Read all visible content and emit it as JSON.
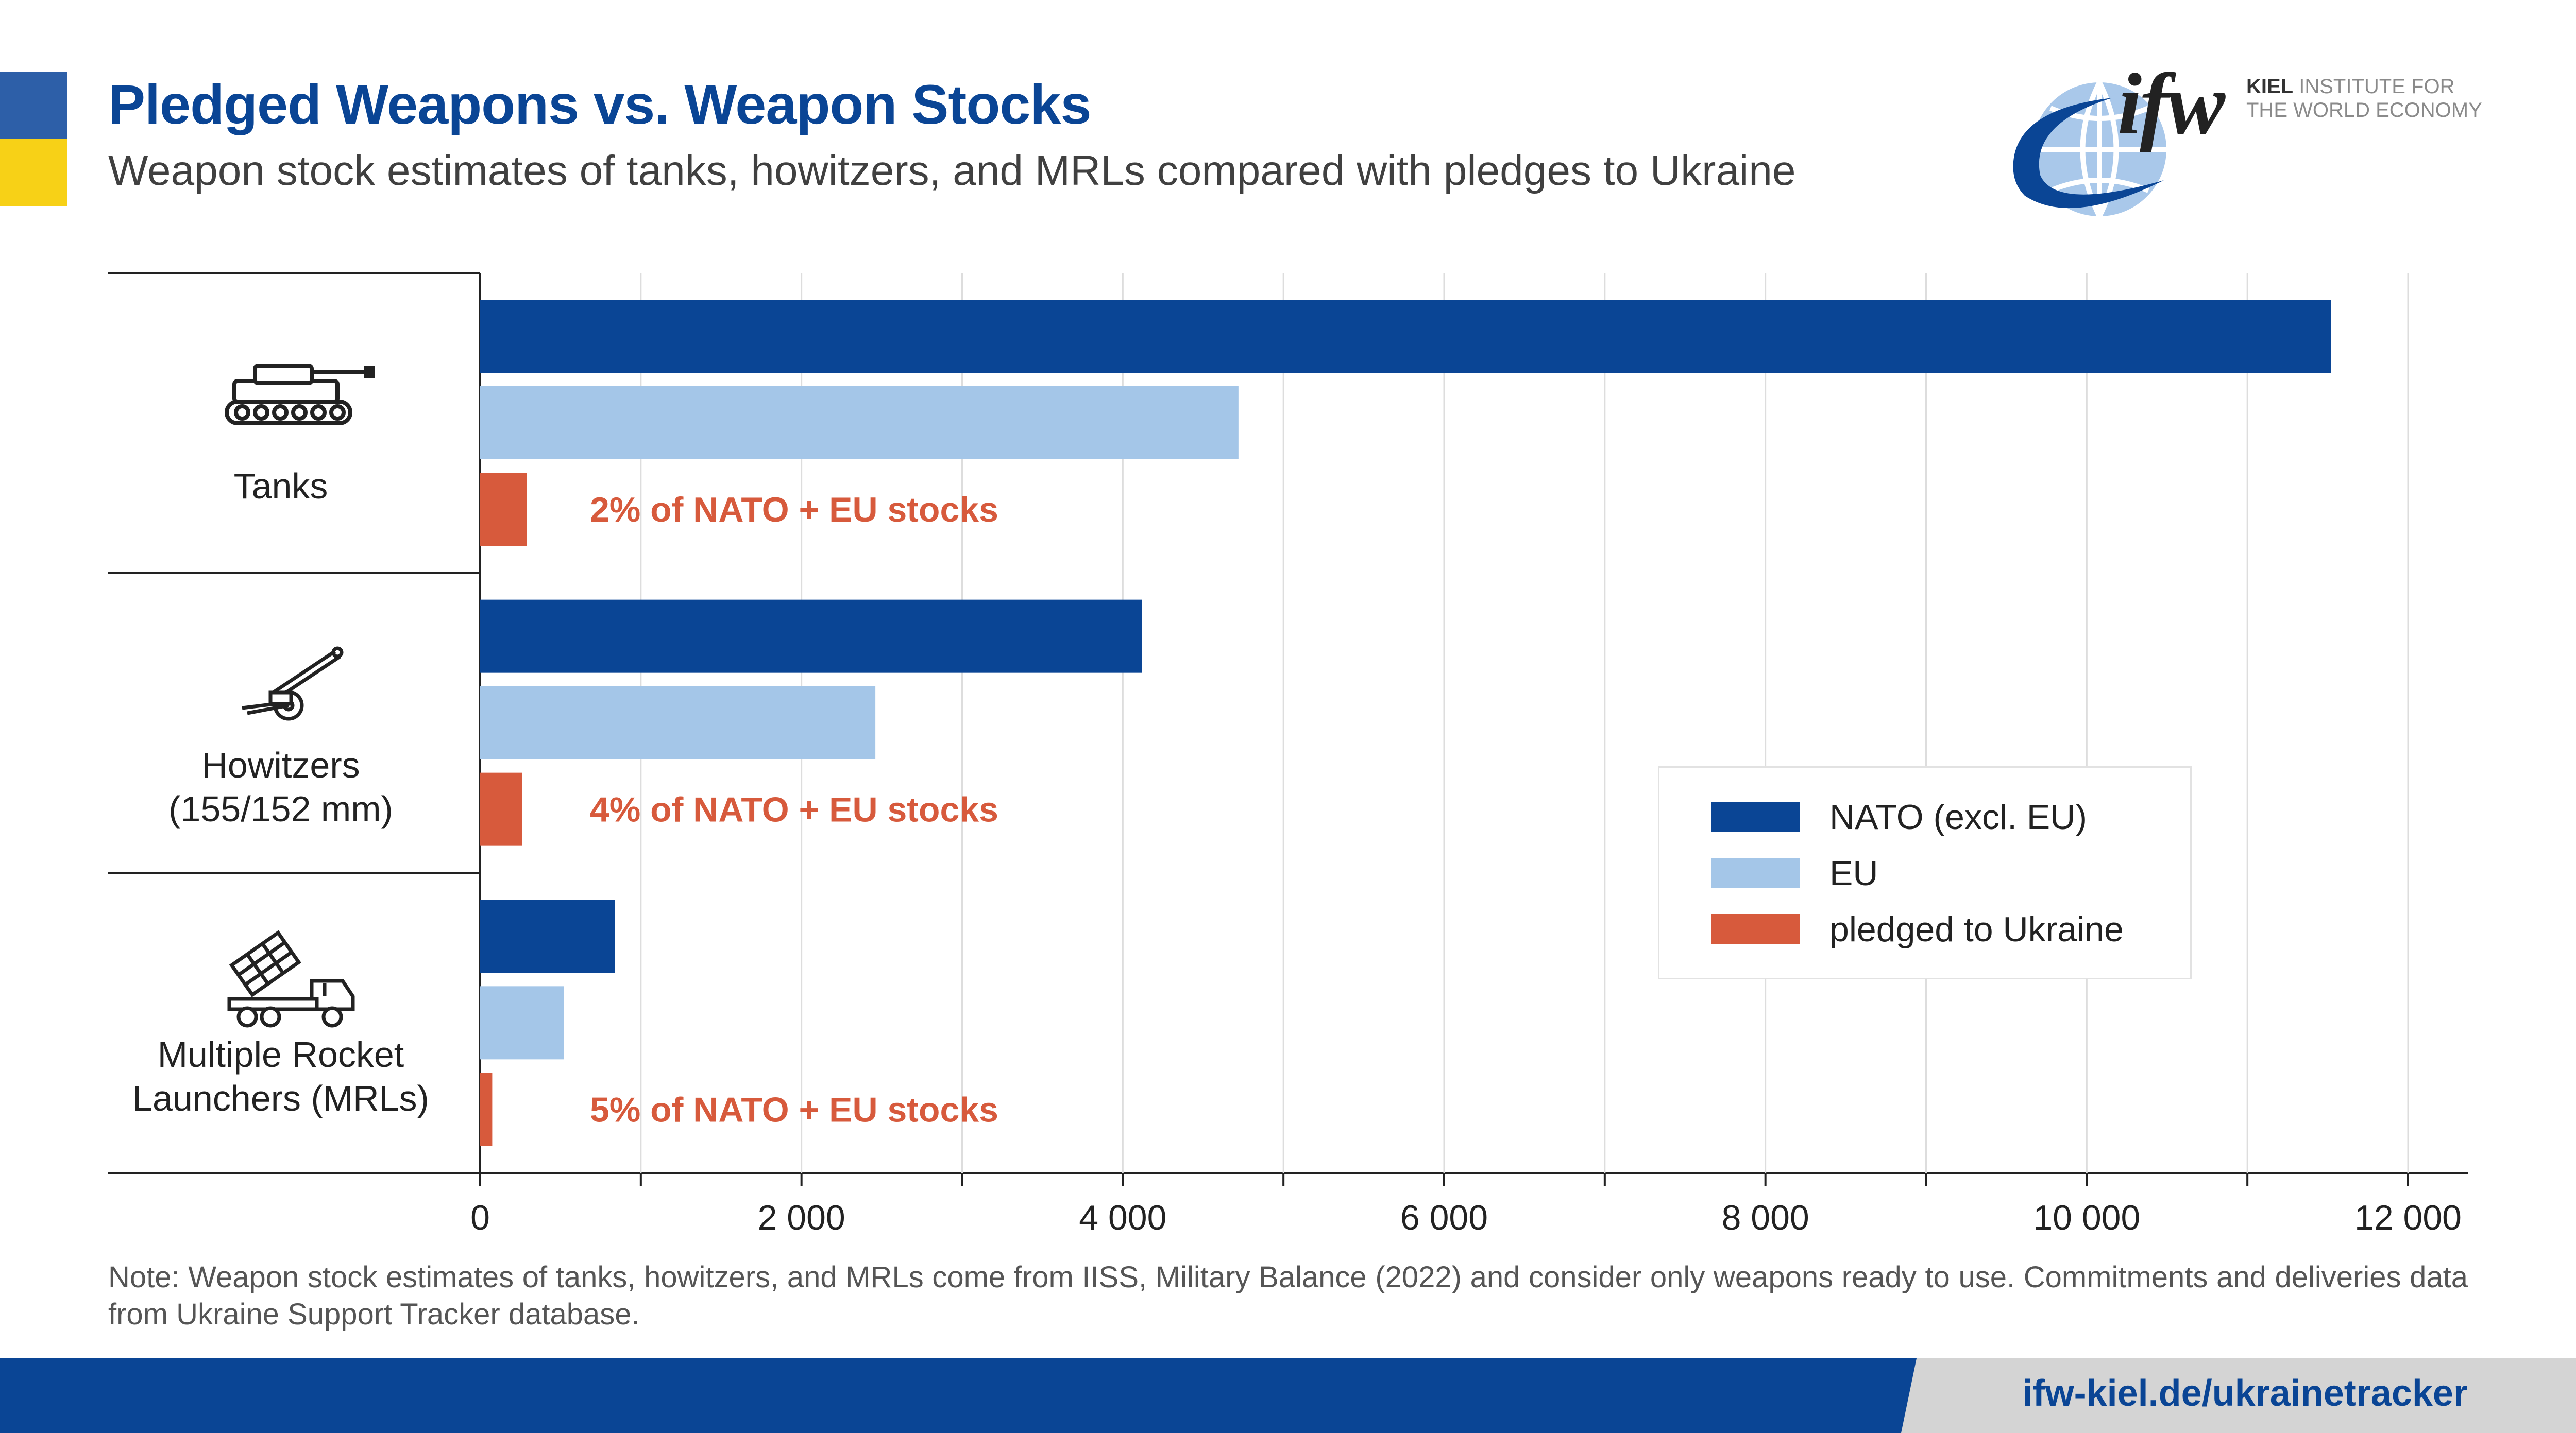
{
  "header": {
    "title": "Pledged Weapons vs. Weapon Stocks",
    "subtitle": "Weapon stock estimates of tanks, howitzers, and MRLs compared with pledges to Ukraine"
  },
  "logo": {
    "mark": "ifw",
    "institute_line1": "KIEL",
    "institute_line1_rest": "INSTITUTE FOR",
    "institute_line2": "THE WORLD ECONOMY"
  },
  "chart_data": {
    "type": "bar",
    "orientation": "horizontal",
    "categories": [
      "Tanks",
      "Howitzers\n(155/152 mm)",
      "Multiple Rocket\nLaunchers (MRLs)"
    ],
    "category_icons": [
      "tank-icon",
      "howitzer-icon",
      "rocket-launcher-icon"
    ],
    "series": [
      {
        "name": "NATO (excl. EU)",
        "color": "#0a4595",
        "values": [
          11520,
          4120,
          840
        ]
      },
      {
        "name": "EU",
        "color": "#a4c6e8",
        "values": [
          4720,
          2460,
          520
        ]
      },
      {
        "name": "pledged to Ukraine",
        "color": "#d75a3c",
        "values": [
          290,
          260,
          75
        ]
      }
    ],
    "annotations": [
      "2% of NATO + EU stocks",
      "4% of NATO + EU stocks",
      "5% of NATO + EU stocks"
    ],
    "annotation_color": "#d75a3c",
    "xlim": [
      0,
      12000
    ],
    "xticks": [
      0,
      2000,
      4000,
      6000,
      8000,
      10000,
      12000
    ],
    "xtick_labels": [
      "0",
      "2 000",
      "4 000",
      "6 000",
      "8 000",
      "10 000",
      "12 000"
    ],
    "grid": true,
    "legend_position": "center-right"
  },
  "note": "Note: Weapon stock estimates of tanks, howitzers, and MRLs come from IISS, Military Balance (2022) and consider only weapons ready to use. Commitments and deliveries data from Ukraine Support Tracker database.",
  "footer": {
    "url": "ifw-kiel.de/ukrainetracker"
  },
  "colors": {
    "brand_blue": "#0a4595",
    "flag_blue": "#2d5fa8",
    "flag_yellow": "#f7d117",
    "accent": "#d75a3c"
  }
}
